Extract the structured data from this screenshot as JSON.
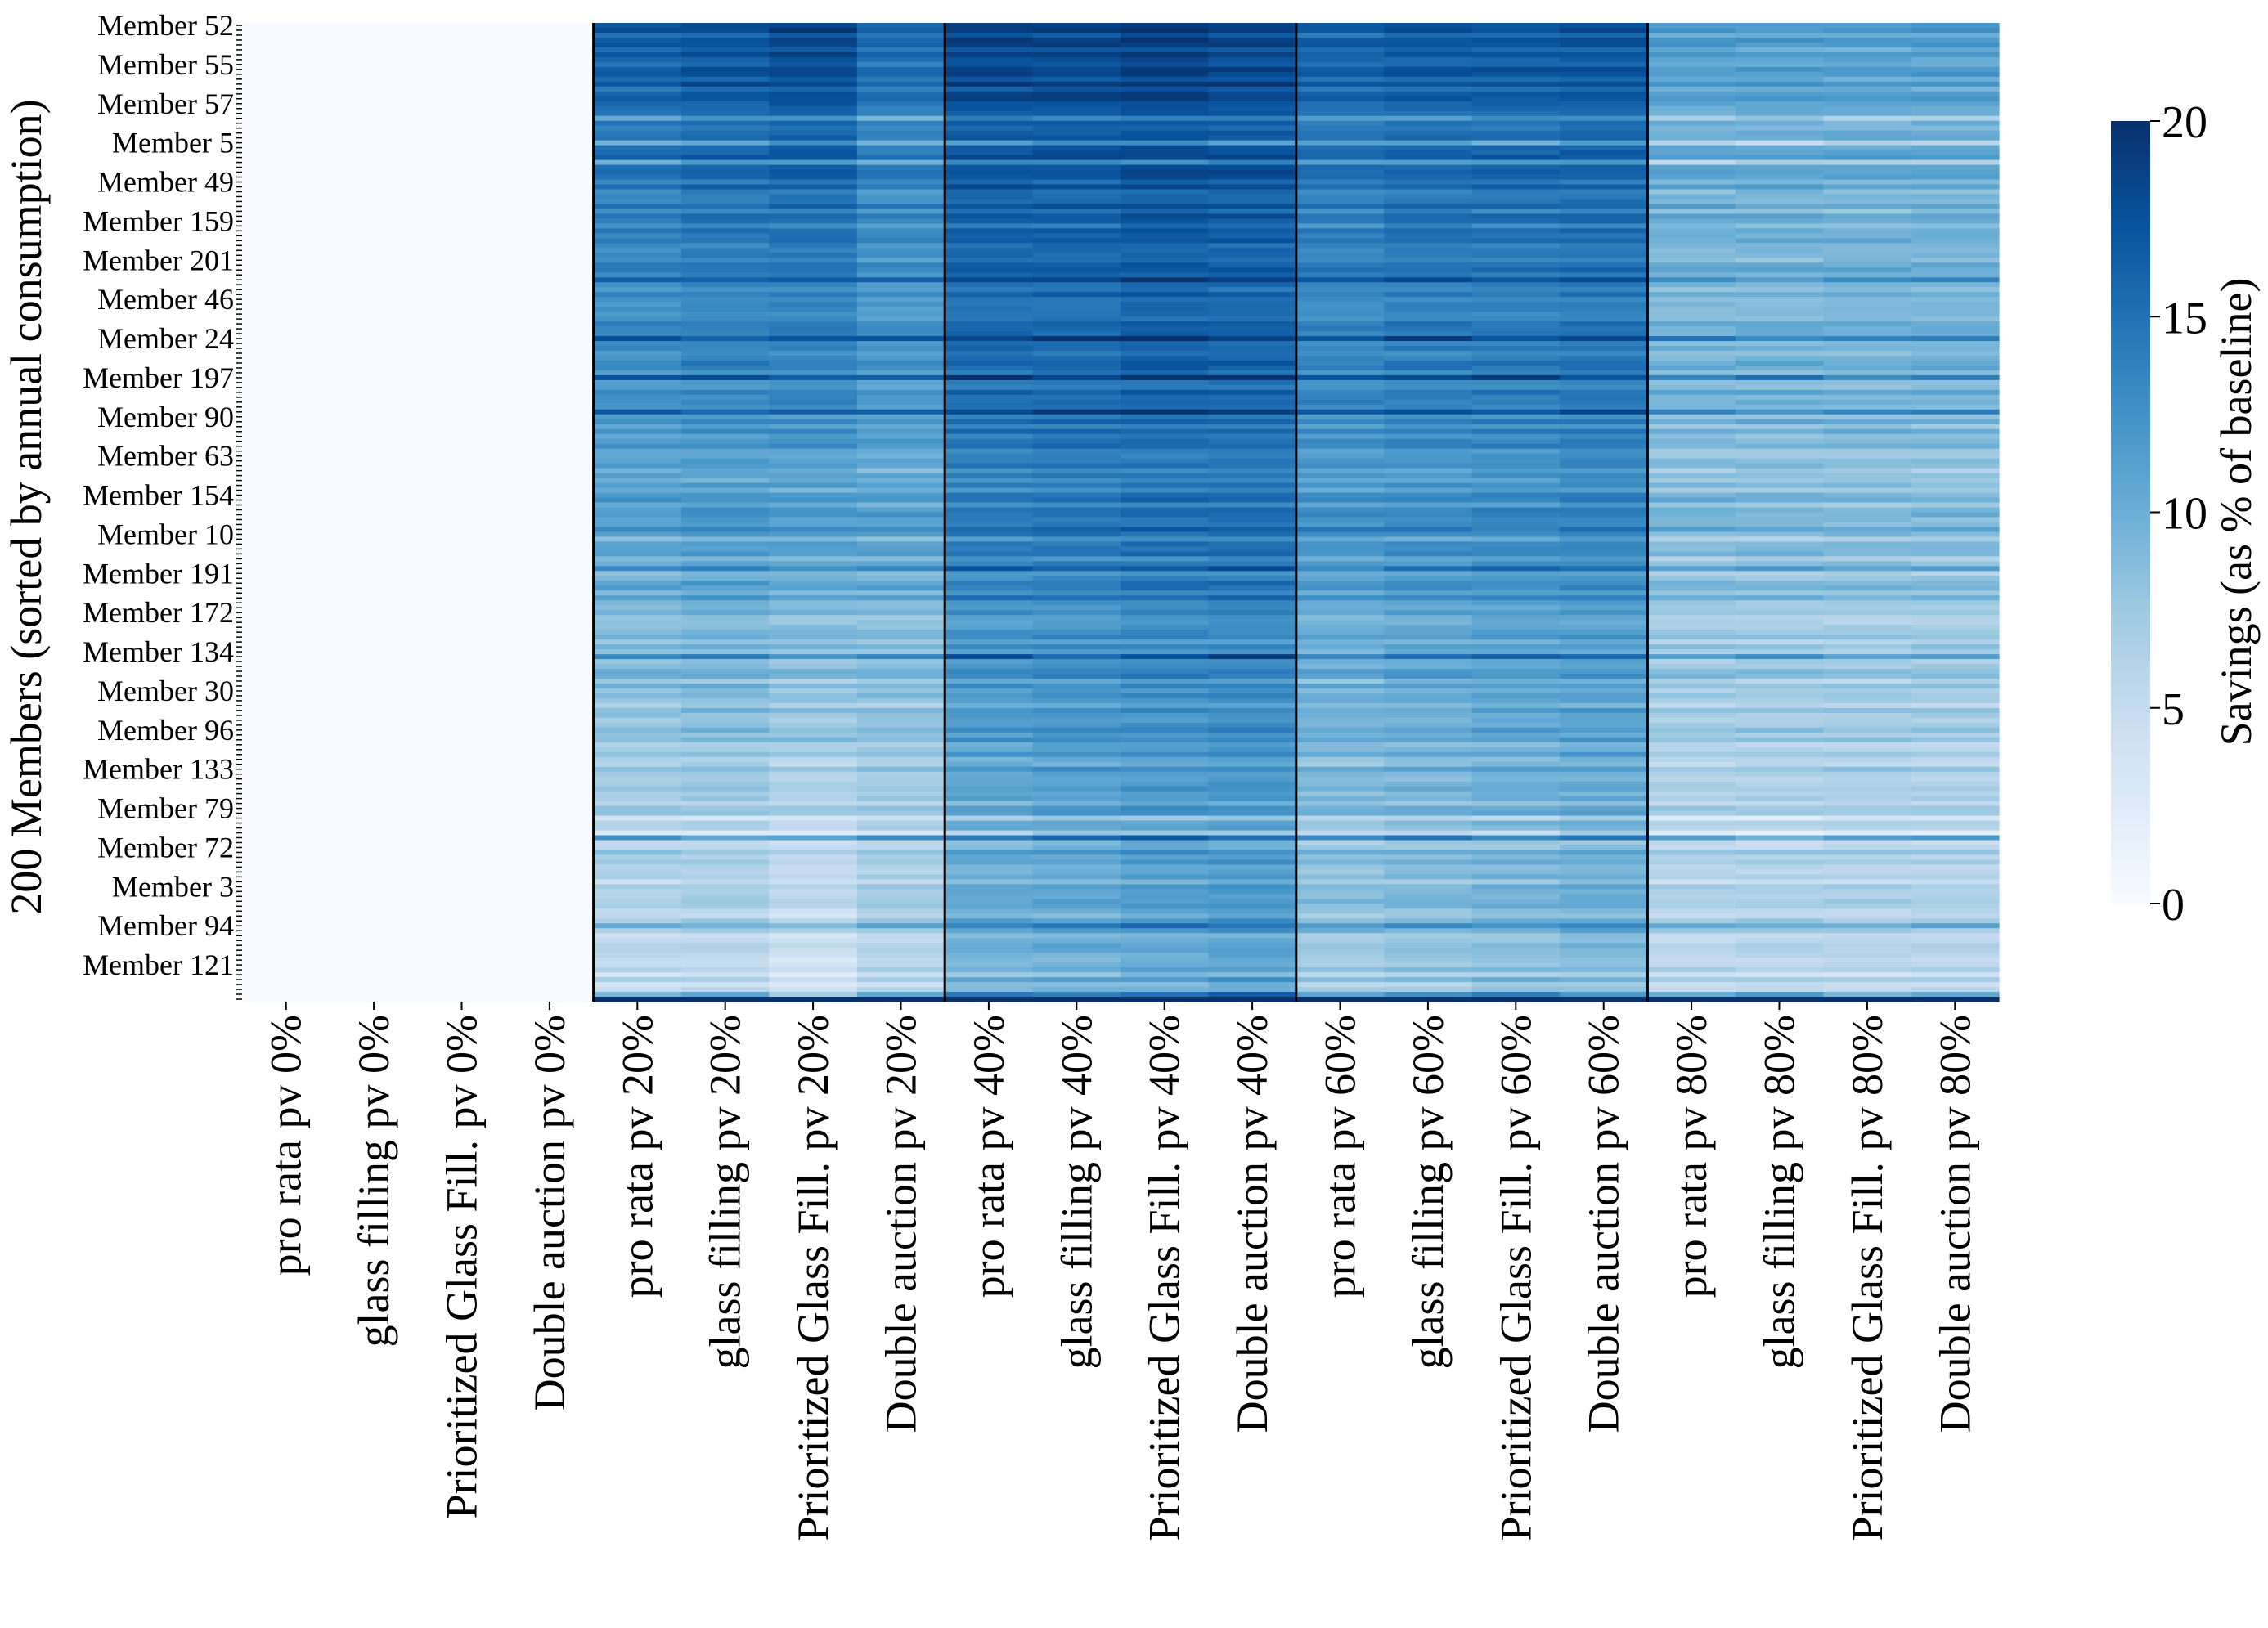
{
  "chart_data": {
    "type": "heatmap",
    "title": "",
    "ylabel": "200 Members (sorted by annual consumption)",
    "colorbar_label": "Savings (as % of baseline)",
    "colorbar_range": [
      0,
      20
    ],
    "colorbar_ticks": [
      "0",
      "5",
      "10",
      "15",
      "20"
    ],
    "colormap": "Blues",
    "colormap_low": "#f7fbff",
    "colormap_high": "#08306b",
    "n_rows": 200,
    "row_labels": [
      "Member 52",
      "Member 55",
      "Member 57",
      "Member 5",
      "Member 49",
      "Member 159",
      "Member 201",
      "Member 46",
      "Member 24",
      "Member 197",
      "Member 90",
      "Member 63",
      "Member 154",
      "Member 10",
      "Member 191",
      "Member 172",
      "Member 134",
      "Member 30",
      "Member 96",
      "Member 133",
      "Member 79",
      "Member 72",
      "Member 3",
      "Member 94",
      "Member 121"
    ],
    "row_label_step": 8,
    "columns": [
      "pro rata pv 0%",
      "glass filling pv 0%",
      "Prioritized Glass Fill. pv 0%",
      "Double auction pv 0%",
      "pro rata pv 20%",
      "glass filling pv 20%",
      "Prioritized Glass Fill. pv 20%",
      "Double auction pv 20%",
      "pro rata pv 40%",
      "glass filling pv 40%",
      "Prioritized Glass Fill. pv 40%",
      "Double auction pv 40%",
      "pro rata pv 60%",
      "glass filling pv 60%",
      "Prioritized Glass Fill. pv 60%",
      "Double auction pv 60%",
      "pro rata pv 80%",
      "glass filling pv 80%",
      "Prioritized Glass Fill. pv 80%",
      "Double auction pv 80%"
    ],
    "pv_groups": [
      "pv 0%",
      "pv 20%",
      "pv 40%",
      "pv 60%",
      "pv 80%"
    ],
    "mean_savings_by_column_top_to_bottom": [
      [
        0,
        0
      ],
      [
        0,
        0
      ],
      [
        0,
        0
      ],
      [
        0,
        0
      ],
      [
        16,
        5
      ],
      [
        17,
        5
      ],
      [
        18,
        3.5
      ],
      [
        15,
        5.5
      ],
      [
        18,
        9
      ],
      [
        18,
        9.5
      ],
      [
        18.5,
        10
      ],
      [
        18,
        10.5
      ],
      [
        16,
        7
      ],
      [
        16.5,
        7.5
      ],
      [
        16.5,
        8
      ],
      [
        17,
        8.5
      ],
      [
        11,
        5.5
      ],
      [
        11,
        5.5
      ],
      [
        11,
        5.5
      ],
      [
        11,
        5.5
      ]
    ]
  }
}
